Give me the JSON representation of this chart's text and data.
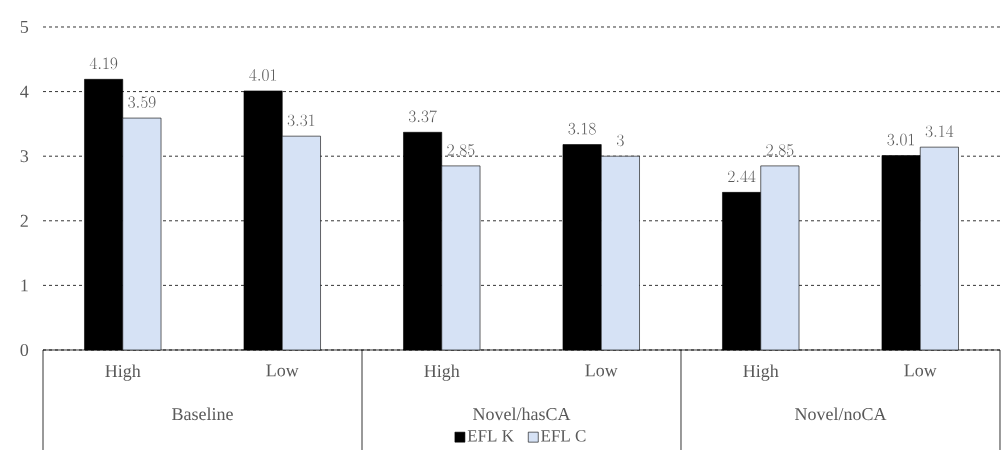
{
  "chart_data": {
    "type": "bar",
    "categories": [
      "High",
      "Low",
      "High",
      "Low",
      "High",
      "Low"
    ],
    "series": [
      {
        "name": "EFL K",
        "color": "#000000",
        "values": [
          4.19,
          4.01,
          3.37,
          3.18,
          2.44,
          3.01
        ]
      },
      {
        "name": "EFL C",
        "color": "#d6e2f5",
        "values": [
          3.59,
          3.31,
          2.85,
          3,
          2.85,
          3.14
        ]
      }
    ],
    "annotations": [
      "Baseline",
      "Novel/hasCA",
      "Novel/noCA"
    ],
    "ylim": [
      0,
      5
    ],
    "yticks": [
      0,
      1,
      2,
      3,
      4,
      5
    ],
    "grid": "y",
    "legend": "bottom",
    "data_labels": true
  }
}
